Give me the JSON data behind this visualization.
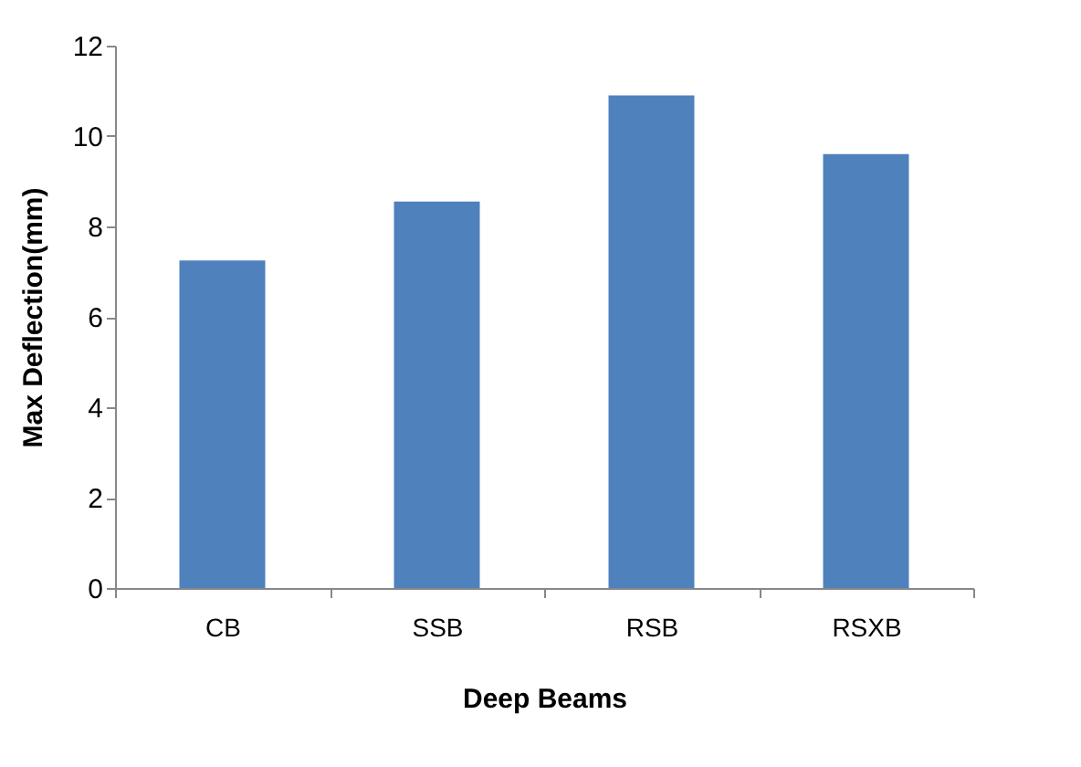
{
  "chart_data": {
    "type": "bar",
    "xlabel": "Deep Beams",
    "ylabel": "Max Deflection(mm)",
    "categories": [
      "CB",
      "SSB",
      "RSB",
      "RSXB"
    ],
    "values": [
      7.25,
      8.55,
      10.9,
      9.6
    ],
    "color": "#4f81bd",
    "ylim": [
      0,
      12
    ],
    "yticks": [
      0,
      2,
      4,
      6,
      8,
      10,
      12
    ],
    "grid": false
  }
}
